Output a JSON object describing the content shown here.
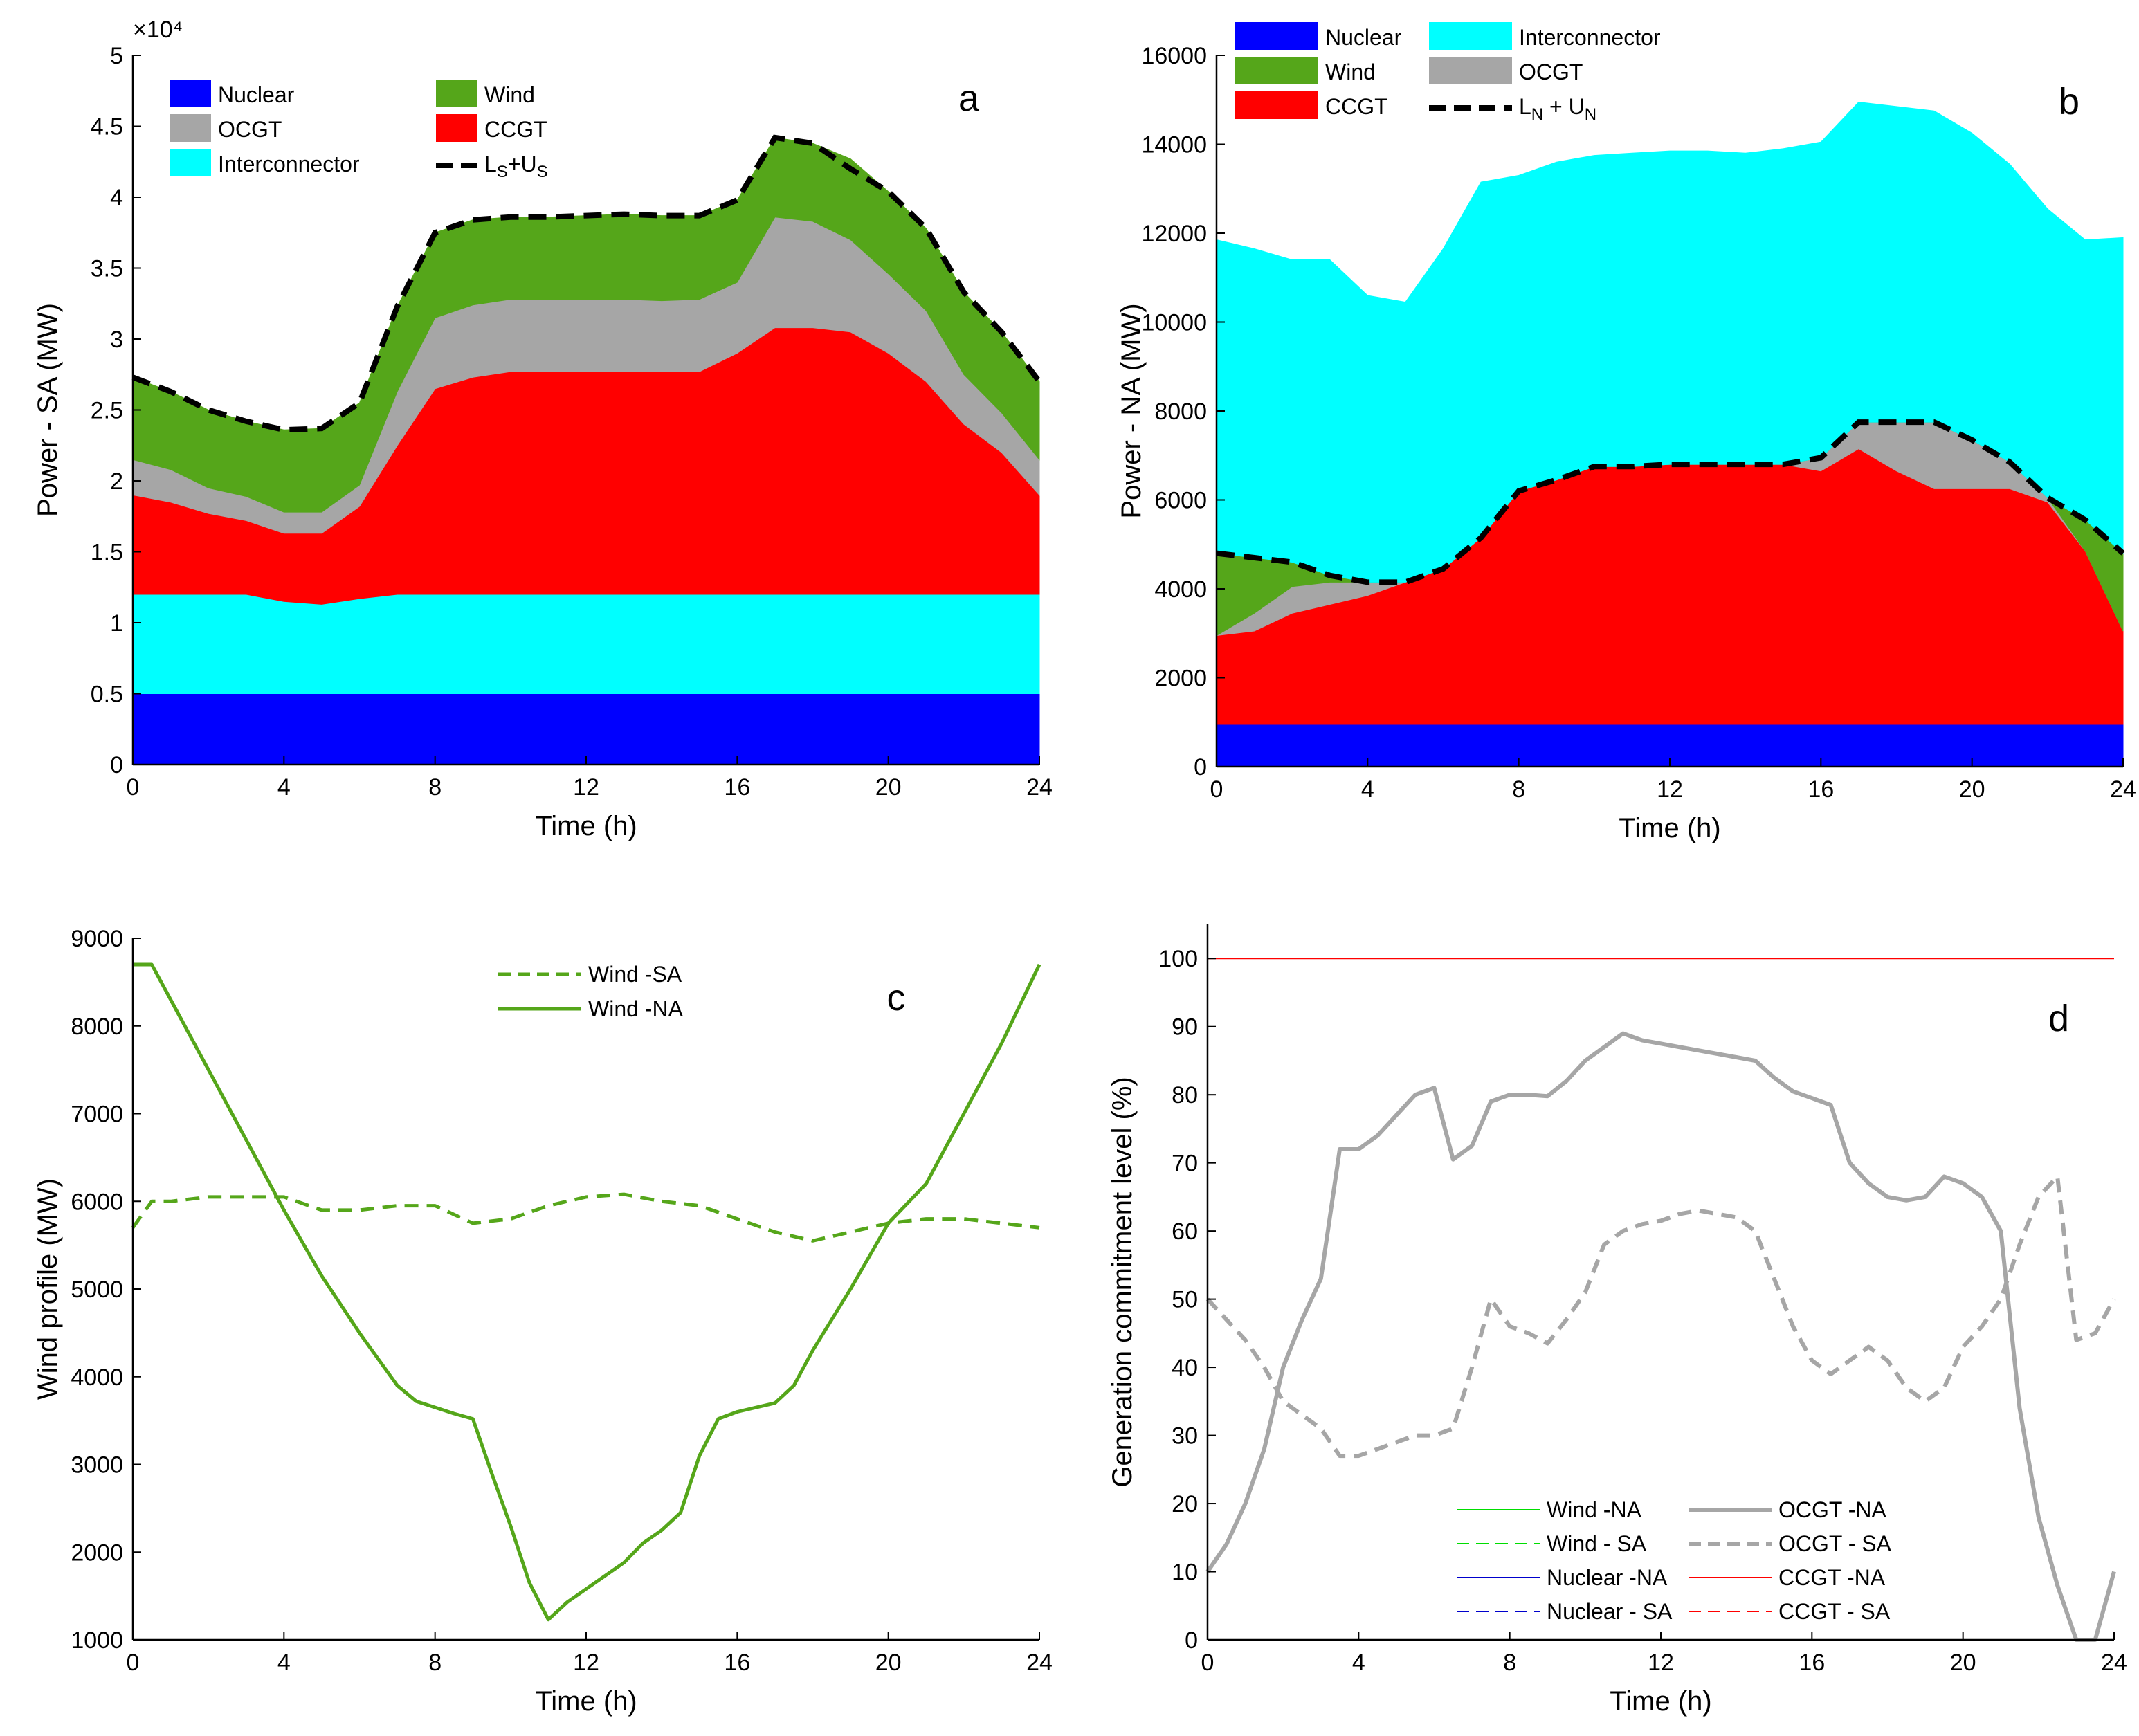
{
  "chart_data": [
    {
      "id": "a",
      "type": "area",
      "panel_label": "a",
      "xlabel": "Time (h)",
      "ylabel": "Power - SA (MW)",
      "exponent_label": "×10⁴",
      "xlim": [
        0,
        24
      ],
      "ylim": [
        0,
        50000
      ],
      "x_ticks": [
        0,
        4,
        8,
        12,
        16,
        20,
        24
      ],
      "x_tick_labels": [
        "0",
        "4",
        "8",
        "12",
        "16",
        "20",
        "24"
      ],
      "y_ticks": [
        0,
        5000,
        10000,
        15000,
        20000,
        25000,
        30000,
        35000,
        40000,
        45000,
        50000
      ],
      "y_tick_labels": [
        "0",
        "0.5",
        "1",
        "1.5",
        "2",
        "2.5",
        "3",
        "3.5",
        "4",
        "4.5",
        "5"
      ],
      "x": [
        0,
        1,
        2,
        3,
        4,
        5,
        6,
        7,
        8,
        9,
        10,
        11,
        12,
        13,
        14,
        15,
        16,
        17,
        18,
        19,
        20,
        21,
        22,
        23,
        24
      ],
      "series": [
        {
          "name": "Nuclear",
          "color": "#0000ff",
          "values": [
            5000,
            5000,
            5000,
            5000,
            5000,
            5000,
            5000,
            5000,
            5000,
            5000,
            5000,
            5000,
            5000,
            5000,
            5000,
            5000,
            5000,
            5000,
            5000,
            5000,
            5000,
            5000,
            5000,
            5000,
            5000
          ]
        },
        {
          "name": "Interconnector",
          "color": "#00ffff",
          "values": [
            7000,
            7000,
            7000,
            7000,
            6500,
            6300,
            6700,
            7000,
            7000,
            7000,
            7000,
            7000,
            7000,
            7000,
            7000,
            7000,
            7000,
            7000,
            7000,
            7000,
            7000,
            7000,
            7000,
            7000,
            7000
          ]
        },
        {
          "name": "CCGT",
          "color": "#ff0000",
          "values": [
            7000,
            6500,
            5700,
            5200,
            4800,
            5000,
            6500,
            10500,
            14500,
            15300,
            15700,
            15700,
            15700,
            15700,
            15700,
            15700,
            17000,
            18800,
            18800,
            18500,
            17000,
            15000,
            12000,
            10000,
            7000
          ]
        },
        {
          "name": "OCGT",
          "color": "#a6a6a6",
          "values": [
            2500,
            2300,
            1800,
            1700,
            1500,
            1500,
            1500,
            3800,
            5000,
            5100,
            5100,
            5100,
            5100,
            5100,
            5000,
            5100,
            5000,
            7800,
            7500,
            6500,
            5600,
            5000,
            3500,
            2800,
            2500
          ]
        },
        {
          "name": "Wind",
          "color": "#55a61a",
          "values": [
            5800,
            5500,
            5500,
            5300,
            5800,
            5900,
            5800,
            6000,
            6000,
            6000,
            5800,
            5800,
            5900,
            6000,
            6000,
            5900,
            5800,
            5600,
            5500,
            5700,
            5800,
            5800,
            5800,
            5700,
            5500
          ]
        }
      ],
      "line": {
        "name": "LS+US",
        "color": "#000000",
        "dashed": true,
        "values": [
          27300,
          26300,
          25000,
          24200,
          23600,
          23700,
          25500,
          32300,
          37500,
          38400,
          38600,
          38600,
          38700,
          38800,
          38700,
          38700,
          39800,
          44200,
          43800,
          42000,
          40400,
          37800,
          33300,
          30500,
          27000
        ]
      },
      "legend": [
        {
          "name": "Nuclear",
          "color": "#0000ff",
          "kind": "patch"
        },
        {
          "name": "Interconnector",
          "color": "#00ffff",
          "kind": "patch"
        },
        {
          "name": "CCGT",
          "color": "#ff0000",
          "kind": "patch"
        },
        {
          "name": "OCGT",
          "color": "#a6a6a6",
          "kind": "patch"
        },
        {
          "name": "Wind",
          "color": "#55a61a",
          "kind": "patch"
        },
        {
          "name": "L",
          "sub": "S",
          "mid": "+U",
          "sub2": "S",
          "color": "#000000",
          "kind": "dash"
        }
      ]
    },
    {
      "id": "b",
      "type": "area",
      "panel_label": "b",
      "xlabel": "Time (h)",
      "ylabel": "Power - NA (MW)",
      "xlim": [
        0,
        24
      ],
      "ylim": [
        0,
        16000
      ],
      "x_ticks": [
        0,
        4,
        8,
        12,
        16,
        20,
        24
      ],
      "x_tick_labels": [
        "0",
        "4",
        "8",
        "12",
        "16",
        "20",
        "24"
      ],
      "y_ticks": [
        0,
        2000,
        4000,
        6000,
        8000,
        10000,
        12000,
        14000,
        16000
      ],
      "y_tick_labels": [
        "0",
        "2000",
        "4000",
        "6000",
        "8000",
        "10000",
        "12000",
        "14000",
        "16000"
      ],
      "x": [
        0,
        1,
        2,
        3,
        4,
        5,
        6,
        7,
        8,
        9,
        10,
        11,
        12,
        13,
        14,
        15,
        16,
        17,
        18,
        19,
        20,
        21,
        22,
        23,
        24
      ],
      "series": [
        {
          "name": "Nuclear",
          "color": "#0000ff",
          "values": [
            950,
            950,
            950,
            950,
            950,
            950,
            950,
            950,
            950,
            950,
            950,
            950,
            950,
            950,
            950,
            950,
            950,
            950,
            950,
            950,
            950,
            950,
            950,
            950,
            950
          ]
        },
        {
          "name": "CCGT",
          "color": "#ff0000",
          "values": [
            2000,
            2100,
            2500,
            2700,
            2900,
            3200,
            3500,
            4200,
            5250,
            5500,
            5800,
            5800,
            5850,
            5850,
            5850,
            5850,
            5700,
            6200,
            5700,
            5300,
            5300,
            5300,
            5000,
            3900,
            2100
          ]
        },
        {
          "name": "OCGT",
          "color": "#a6a6a6",
          "values": [
            0,
            400,
            600,
            500,
            300,
            0,
            0,
            0,
            0,
            0,
            0,
            0,
            0,
            0,
            0,
            0,
            300,
            600,
            1100,
            1500,
            1100,
            600,
            100,
            0,
            0
          ]
        },
        {
          "name": "Wind",
          "color": "#55a61a",
          "values": [
            1850,
            1250,
            550,
            150,
            0,
            0,
            0,
            0,
            0,
            0,
            0,
            0,
            0,
            0,
            0,
            0,
            0,
            0,
            0,
            0,
            0,
            0,
            0,
            700,
            1750
          ]
        },
        {
          "name": "Interconnector",
          "color": "#00ffff",
          "values": [
            7050,
            6950,
            6800,
            7100,
            6450,
            6300,
            7200,
            8000,
            7100,
            7150,
            7000,
            7050,
            7050,
            7050,
            7000,
            7100,
            7100,
            7200,
            7100,
            7000,
            6900,
            6700,
            6500,
            6300,
            7100
          ]
        }
      ],
      "line": {
        "name": "LN + UN",
        "color": "#000000",
        "dashed": true,
        "values": [
          4800,
          4700,
          4600,
          4300,
          4150,
          4150,
          4450,
          5150,
          6200,
          6450,
          6750,
          6750,
          6800,
          6800,
          6800,
          6800,
          6950,
          7750,
          7750,
          7750,
          7350,
          6850,
          6050,
          5550,
          4800
        ]
      },
      "legend": [
        {
          "name": "Nuclear",
          "color": "#0000ff",
          "kind": "patch"
        },
        {
          "name": "CCGT",
          "color": "#ff0000",
          "kind": "patch"
        },
        {
          "name": "OCGT",
          "color": "#a6a6a6",
          "kind": "patch"
        },
        {
          "name": "Wind",
          "color": "#55a61a",
          "kind": "patch"
        },
        {
          "name": "Interconnector",
          "color": "#00ffff",
          "kind": "patch"
        },
        {
          "name": "L",
          "sub": "N",
          "mid": " + U",
          "sub2": "N",
          "color": "#000000",
          "kind": "dash"
        }
      ]
    },
    {
      "id": "c",
      "type": "line",
      "panel_label": "c",
      "xlabel": "Time (h)",
      "ylabel": "Wind profile (MW)",
      "xlim": [
        0,
        24
      ],
      "ylim": [
        1000,
        9000
      ],
      "x_ticks": [
        0,
        4,
        8,
        12,
        16,
        20,
        24
      ],
      "x_tick_labels": [
        "0",
        "4",
        "8",
        "12",
        "16",
        "20",
        "24"
      ],
      "y_ticks": [
        1000,
        2000,
        3000,
        4000,
        5000,
        6000,
        7000,
        8000,
        9000
      ],
      "y_tick_labels": [
        "1000",
        "2000",
        "3000",
        "4000",
        "5000",
        "6000",
        "7000",
        "8000",
        "9000"
      ],
      "series": [
        {
          "name": "Wind - SA",
          "color": "#55a61a",
          "dash": "dashed",
          "x": [
            0,
            0.5,
            1,
            2,
            3,
            4,
            5,
            6,
            7,
            8,
            9,
            10,
            11,
            12,
            13,
            14,
            15,
            16,
            17,
            18,
            19,
            20,
            21,
            22,
            23,
            24
          ],
          "values": [
            5700,
            6000,
            6000,
            6050,
            6050,
            6050,
            5900,
            5900,
            5950,
            5950,
            5750,
            5800,
            5950,
            6050,
            6080,
            6000,
            5950,
            5800,
            5650,
            5550,
            5650,
            5750,
            5800,
            5800,
            5750,
            5700
          ]
        },
        {
          "name": "Wind - NA",
          "color": "#55a61a",
          "dash": "solid",
          "x": [
            0,
            0.5,
            1,
            2,
            3,
            4,
            5,
            6,
            7,
            7.5,
            8.5,
            9,
            9.5,
            10,
            10.5,
            11,
            11.5,
            12,
            13,
            13.5,
            14,
            14.5,
            15,
            15.5,
            16,
            17,
            17.5,
            18,
            19,
            20,
            21,
            22,
            23,
            24
          ],
          "values": [
            8700,
            8700,
            8300,
            7500,
            6700,
            5900,
            5150,
            4500,
            3900,
            3720,
            3580,
            3520,
            2900,
            2300,
            1650,
            1230,
            1430,
            1580,
            1880,
            2100,
            2250,
            2450,
            3100,
            3520,
            3600,
            3700,
            3900,
            4300,
            5000,
            5750,
            6200,
            7000,
            7800,
            8700
          ]
        }
      ],
      "legend": [
        {
          "name": "Wind -SA",
          "color": "#55a61a",
          "kind": "dashed"
        },
        {
          "name": "Wind -NA",
          "color": "#55a61a",
          "kind": "solid"
        }
      ]
    },
    {
      "id": "d",
      "type": "line",
      "panel_label": "d",
      "xlabel": "Time (h)",
      "ylabel": "Generation commitment level (%)",
      "xlim": [
        0,
        24
      ],
      "ylim": [
        0,
        105
      ],
      "x_ticks": [
        0,
        4,
        8,
        12,
        16,
        20,
        24
      ],
      "x_tick_labels": [
        "0",
        "4",
        "8",
        "12",
        "16",
        "20",
        "24"
      ],
      "y_ticks": [
        0,
        10,
        20,
        30,
        40,
        50,
        60,
        70,
        80,
        90,
        100
      ],
      "y_tick_labels": [
        "0",
        "10",
        "20",
        "30",
        "40",
        "50",
        "60",
        "70",
        "80",
        "90",
        "100"
      ],
      "series": [
        {
          "name": "CCGT -NA",
          "color": "#ff0000",
          "dash": "solid",
          "width": 2,
          "x": [
            0,
            24
          ],
          "values": [
            100,
            100
          ]
        },
        {
          "name": "OCGT -NA",
          "color": "#a6a6a6",
          "dash": "solid",
          "width": 6,
          "x": [
            0,
            0.5,
            1,
            1.5,
            2,
            2.5,
            3,
            3.5,
            4,
            4.5,
            5,
            5.5,
            6,
            6.5,
            7,
            7.5,
            8,
            8.5,
            9,
            9.5,
            10,
            10.5,
            11,
            11.5,
            12,
            12.5,
            13,
            13.5,
            14,
            14.5,
            15,
            15.5,
            16,
            16.5,
            17,
            17.5,
            18,
            18.5,
            19,
            19.5,
            20,
            20.5,
            21,
            21.5,
            22,
            22.5,
            23,
            23.5,
            24
          ],
          "values": [
            10,
            14,
            20,
            28,
            40,
            47,
            53,
            72,
            72,
            74,
            77,
            80,
            81,
            70.5,
            72.5,
            79,
            80,
            80,
            79.8,
            82,
            85,
            87,
            89,
            88,
            87.5,
            87,
            86.5,
            86,
            85.5,
            85,
            82.5,
            80.5,
            79.5,
            78.5,
            70,
            67,
            65,
            64.5,
            65,
            68,
            67,
            65,
            60,
            34,
            18,
            8,
            0,
            0,
            10
          ]
        },
        {
          "name": "OCGT - SA",
          "color": "#a6a6a6",
          "dash": "dashed",
          "width": 6,
          "x": [
            0,
            0.5,
            1,
            1.5,
            2,
            2.5,
            3,
            3.5,
            4,
            4.5,
            5,
            5.5,
            6,
            6.5,
            7,
            7.5,
            8,
            8.5,
            9,
            9.5,
            10,
            10.5,
            11,
            11.5,
            12,
            12.5,
            13,
            13.5,
            14,
            14.5,
            15,
            15.5,
            16,
            16.5,
            17,
            17.5,
            18,
            18.5,
            19,
            19.5,
            20,
            20.5,
            21,
            21.5,
            22,
            22.5,
            23,
            23.5,
            24
          ],
          "values": [
            50,
            47,
            44,
            40,
            35,
            33,
            31,
            27,
            27,
            28,
            29,
            30,
            30,
            31,
            40,
            50,
            46,
            45,
            43.5,
            47,
            51,
            58,
            60,
            61,
            61.5,
            62.5,
            63,
            62.5,
            62,
            60,
            53,
            46,
            41,
            39,
            41,
            43,
            41,
            37,
            35,
            37,
            43,
            46,
            50,
            58,
            65,
            68,
            44,
            45,
            50
          ]
        }
      ],
      "legend": [
        {
          "name": "Wind -NA",
          "color": "#00dd00",
          "kind": "solid",
          "lw": 2
        },
        {
          "name": "Wind - SA",
          "color": "#00dd00",
          "kind": "dashed",
          "lw": 2
        },
        {
          "name": "Nuclear -NA",
          "color": "#0000cc",
          "kind": "solid",
          "lw": 2
        },
        {
          "name": "Nuclear - SA",
          "color": "#0000cc",
          "kind": "dashed",
          "lw": 2
        },
        {
          "name": "OCGT -NA",
          "color": "#a6a6a6",
          "kind": "solid",
          "lw": 6
        },
        {
          "name": "OCGT - SA",
          "color": "#a6a6a6",
          "kind": "dashed",
          "lw": 6
        },
        {
          "name": "CCGT -NA",
          "color": "#ff0000",
          "kind": "solid",
          "lw": 2
        },
        {
          "name": "CCGT - SA",
          "color": "#ff0000",
          "kind": "dashed",
          "lw": 2
        }
      ]
    }
  ]
}
